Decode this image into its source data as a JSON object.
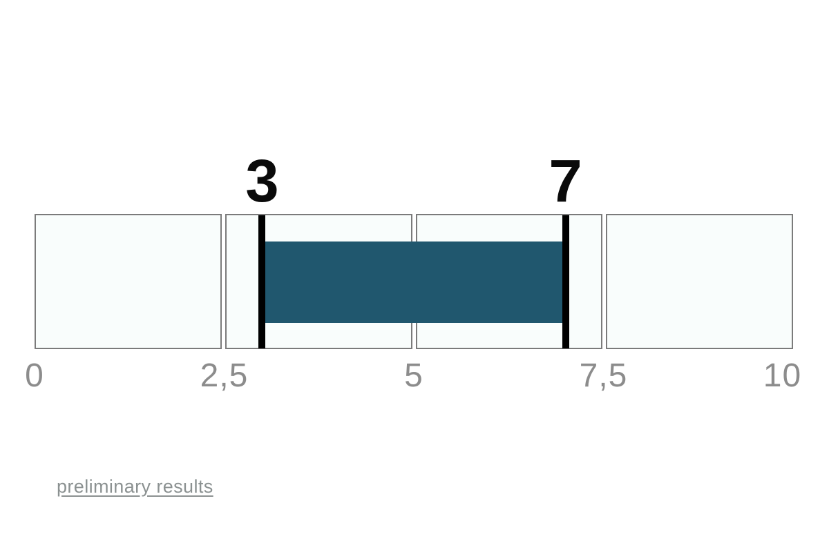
{
  "colors": {
    "bar": "#20576e",
    "marker": "#000000",
    "boxborder": "#7b7b7b",
    "boxbg": "#f9fdfc",
    "tick": "#8c8c8c",
    "link": "#8b9191",
    "valuelabel": "#0a0a0a"
  },
  "chart_data": {
    "type": "bar",
    "subtype": "horizontal-range-indicator",
    "title": "",
    "axis": {
      "min": 0,
      "max": 10,
      "tick_values": [
        0,
        2.5,
        5,
        7.5,
        10
      ],
      "tick_labels": [
        "0",
        "2,5",
        "5",
        "7,5",
        "10"
      ],
      "decimal_separator": ","
    },
    "segments": [
      {
        "from": 0,
        "to": 2.5
      },
      {
        "from": 2.5,
        "to": 5
      },
      {
        "from": 5,
        "to": 7.5
      },
      {
        "from": 7.5,
        "to": 10
      }
    ],
    "range": {
      "low": 3,
      "high": 7,
      "low_label": "3",
      "high_label": "7"
    },
    "grid": false,
    "legend": false
  },
  "footer": {
    "link_label": "preliminary results"
  }
}
